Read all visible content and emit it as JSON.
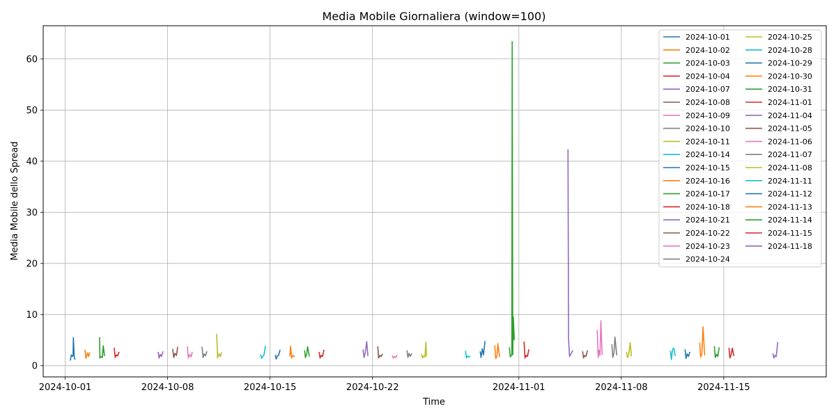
{
  "chart_data": {
    "type": "line",
    "title": "Media Mobile Giornaliera (window=100)",
    "xlabel": "Time",
    "ylabel": "Media Mobile dello Spread",
    "xlim": [
      "2024-09-29T12:00",
      "2024-11-22T00:00"
    ],
    "ylim": [
      -2.2,
      66.5
    ],
    "x_ticks": [
      "2024-10-01",
      "2024-10-08",
      "2024-10-15",
      "2024-10-22",
      "2024-11-01",
      "2024-11-08",
      "2024-11-15"
    ],
    "y_ticks": [
      0,
      10,
      20,
      30,
      40,
      50,
      60
    ],
    "grid": true,
    "legend_position": "top-right",
    "legend_columns": 2,
    "colors": [
      "#1f77b4",
      "#ff7f0e",
      "#2ca02c",
      "#d62728",
      "#9467bd",
      "#8c564b",
      "#e377c2",
      "#7f7f7f",
      "#bcbd22",
      "#17becf"
    ],
    "series": [
      {
        "name": "2024-10-01",
        "date": "2024-10-01",
        "x": [
          "2024-10-01T08:30",
          "2024-10-01T10:00",
          "2024-10-01T12:00",
          "2024-10-01T13:00",
          "2024-10-01T13:30",
          "2024-10-01T15:00",
          "2024-10-01T16:30"
        ],
        "values": [
          1.0,
          2.1,
          1.8,
          2.0,
          5.5,
          1.6,
          1.2
        ]
      },
      {
        "name": "2024-10-02",
        "date": "2024-10-02",
        "x": [
          "2024-10-02T08:30",
          "2024-10-02T10:00",
          "2024-10-02T11:30",
          "2024-10-02T13:00",
          "2024-10-02T14:30",
          "2024-10-02T16:30"
        ],
        "values": [
          3.1,
          1.4,
          2.0,
          2.5,
          1.8,
          2.6
        ]
      },
      {
        "name": "2024-10-03",
        "date": "2024-10-03",
        "x": [
          "2024-10-03T08:30",
          "2024-10-03T09:00",
          "2024-10-03T11:00",
          "2024-10-03T13:00",
          "2024-10-03T14:30",
          "2024-10-03T16:30"
        ],
        "values": [
          5.6,
          1.5,
          1.8,
          1.6,
          3.9,
          1.9
        ]
      },
      {
        "name": "2024-10-04",
        "date": "2024-10-04",
        "x": [
          "2024-10-04T08:30",
          "2024-10-04T10:00",
          "2024-10-04T12:00",
          "2024-10-04T14:00",
          "2024-10-04T16:30"
        ],
        "values": [
          3.5,
          1.6,
          2.1,
          1.9,
          2.7
        ]
      },
      {
        "name": "2024-10-07",
        "date": "2024-10-07",
        "x": [
          "2024-10-07T08:30",
          "2024-10-07T10:00",
          "2024-10-07T12:00",
          "2024-10-07T14:00",
          "2024-10-07T16:30"
        ],
        "values": [
          2.7,
          1.5,
          2.2,
          1.8,
          2.8
        ]
      },
      {
        "name": "2024-10-08",
        "date": "2024-10-08",
        "x": [
          "2024-10-08T08:30",
          "2024-10-08T10:00",
          "2024-10-08T12:00",
          "2024-10-08T14:30",
          "2024-10-08T16:30"
        ],
        "values": [
          3.3,
          1.6,
          2.4,
          2.0,
          3.7
        ]
      },
      {
        "name": "2024-10-09",
        "date": "2024-10-09",
        "x": [
          "2024-10-09T08:30",
          "2024-10-09T10:00",
          "2024-10-09T12:00",
          "2024-10-09T14:30",
          "2024-10-09T16:30"
        ],
        "values": [
          3.8,
          1.5,
          2.2,
          1.7,
          2.7
        ]
      },
      {
        "name": "2024-10-10",
        "date": "2024-10-10",
        "x": [
          "2024-10-10T08:30",
          "2024-10-10T10:00",
          "2024-10-10T12:00",
          "2024-10-10T14:00",
          "2024-10-10T16:30"
        ],
        "values": [
          3.7,
          1.6,
          2.3,
          1.9,
          2.8
        ]
      },
      {
        "name": "2024-10-11",
        "date": "2024-10-11",
        "x": [
          "2024-10-11T08:30",
          "2024-10-11T10:00",
          "2024-10-11T12:00",
          "2024-10-11T14:30",
          "2024-10-11T16:30"
        ],
        "values": [
          6.2,
          1.5,
          2.3,
          1.8,
          2.6
        ]
      },
      {
        "name": "2024-10-14",
        "date": "2024-10-14",
        "x": [
          "2024-10-14T08:30",
          "2024-10-14T10:00",
          "2024-10-14T12:00",
          "2024-10-14T14:00",
          "2024-10-14T16:30"
        ],
        "values": [
          2.2,
          1.4,
          1.8,
          2.1,
          3.9
        ]
      },
      {
        "name": "2024-10-15",
        "date": "2024-10-15",
        "x": [
          "2024-10-15T08:30",
          "2024-10-15T10:00",
          "2024-10-15T12:00",
          "2024-10-15T14:00",
          "2024-10-15T16:30"
        ],
        "values": [
          2.1,
          1.3,
          1.9,
          2.0,
          3.1
        ]
      },
      {
        "name": "2024-10-16",
        "date": "2024-10-16",
        "x": [
          "2024-10-16T08:30",
          "2024-10-16T09:30",
          "2024-10-16T11:30",
          "2024-10-16T13:30",
          "2024-10-16T16:30"
        ],
        "values": [
          1.8,
          3.8,
          1.5,
          2.0,
          1.7
        ]
      },
      {
        "name": "2024-10-17",
        "date": "2024-10-17",
        "x": [
          "2024-10-17T08:30",
          "2024-10-17T10:00",
          "2024-10-17T12:00",
          "2024-10-17T13:30",
          "2024-10-17T16:30"
        ],
        "values": [
          3.0,
          1.6,
          2.2,
          3.7,
          1.8
        ]
      },
      {
        "name": "2024-10-18",
        "date": "2024-10-18",
        "x": [
          "2024-10-18T08:30",
          "2024-10-18T10:00",
          "2024-10-18T12:00",
          "2024-10-18T14:00",
          "2024-10-18T16:30"
        ],
        "values": [
          2.7,
          1.5,
          2.0,
          1.8,
          3.1
        ]
      },
      {
        "name": "2024-10-21",
        "date": "2024-10-21",
        "x": [
          "2024-10-21T08:30",
          "2024-10-21T10:00",
          "2024-10-21T12:00",
          "2024-10-21T14:30",
          "2024-10-21T16:30"
        ],
        "values": [
          3.2,
          1.6,
          2.4,
          4.7,
          1.9
        ]
      },
      {
        "name": "2024-10-22",
        "date": "2024-10-22",
        "x": [
          "2024-10-22T08:30",
          "2024-10-22T10:00",
          "2024-10-22T12:00",
          "2024-10-22T14:00",
          "2024-10-22T16:30"
        ],
        "values": [
          3.8,
          1.5,
          2.0,
          1.8,
          2.3
        ]
      },
      {
        "name": "2024-10-23",
        "date": "2024-10-23",
        "x": [
          "2024-10-23T08:30",
          "2024-10-23T10:00",
          "2024-10-23T12:00",
          "2024-10-23T14:00",
          "2024-10-23T16:30"
        ],
        "values": [
          2.0,
          1.5,
          1.8,
          1.6,
          2.1
        ]
      },
      {
        "name": "2024-10-24",
        "date": "2024-10-24",
        "x": [
          "2024-10-24T08:30",
          "2024-10-24T10:00",
          "2024-10-24T12:00",
          "2024-10-24T14:00",
          "2024-10-24T16:30"
        ],
        "values": [
          3.0,
          1.6,
          2.4,
          1.8,
          2.4
        ]
      },
      {
        "name": "2024-10-25",
        "date": "2024-10-25",
        "x": [
          "2024-10-25T08:30",
          "2024-10-25T10:00",
          "2024-10-25T12:00",
          "2024-10-25T14:00",
          "2024-10-25T15:30",
          "2024-10-25T16:30"
        ],
        "values": [
          2.3,
          1.5,
          1.9,
          1.7,
          4.6,
          1.8
        ]
      },
      {
        "name": "2024-10-28",
        "date": "2024-10-28",
        "x": [
          "2024-10-28T08:30",
          "2024-10-28T10:00",
          "2024-10-28T12:00",
          "2024-10-28T14:00",
          "2024-10-28T16:30"
        ],
        "values": [
          2.9,
          1.5,
          1.9,
          1.7,
          1.8
        ]
      },
      {
        "name": "2024-10-29",
        "date": "2024-10-29",
        "x": [
          "2024-10-29T08:30",
          "2024-10-29T10:00",
          "2024-10-29T12:00",
          "2024-10-29T14:00",
          "2024-10-29T16:30"
        ],
        "values": [
          2.8,
          1.6,
          3.3,
          2.1,
          4.8
        ]
      },
      {
        "name": "2024-10-30",
        "date": "2024-10-30",
        "x": [
          "2024-10-30T08:30",
          "2024-10-30T10:00",
          "2024-10-30T12:00",
          "2024-10-30T13:30",
          "2024-10-30T16:30"
        ],
        "values": [
          4.0,
          1.4,
          1.8,
          4.3,
          1.7
        ]
      },
      {
        "name": "2024-10-31",
        "date": "2024-10-31",
        "x": [
          "2024-10-31T08:30",
          "2024-10-31T10:00",
          "2024-10-31T11:30",
          "2024-10-31T12:30",
          "2024-10-31T13:00",
          "2024-10-31T14:00",
          "2024-10-31T15:00",
          "2024-10-31T16:30"
        ],
        "values": [
          3.6,
          1.7,
          2.0,
          2.3,
          63.4,
          2.1,
          9.5,
          5.0
        ]
      },
      {
        "name": "2024-11-01",
        "date": "2024-11-01",
        "x": [
          "2024-11-01T08:30",
          "2024-11-01T10:00",
          "2024-11-01T12:00",
          "2024-11-01T14:00",
          "2024-11-01T16:30"
        ],
        "values": [
          4.7,
          1.5,
          2.0,
          1.8,
          3.2
        ]
      },
      {
        "name": "2024-11-04",
        "date": "2024-11-04",
        "x": [
          "2024-11-04T08:30",
          "2024-11-04T09:30",
          "2024-11-04T11:00",
          "2024-11-04T13:00",
          "2024-11-04T16:30"
        ],
        "values": [
          42.3,
          5.3,
          1.8,
          2.2,
          3.0
        ]
      },
      {
        "name": "2024-11-05",
        "date": "2024-11-05",
        "x": [
          "2024-11-05T08:30",
          "2024-11-05T10:00",
          "2024-11-05T12:00",
          "2024-11-05T14:00",
          "2024-11-05T16:30"
        ],
        "values": [
          2.8,
          1.5,
          2.0,
          1.8,
          3.0
        ]
      },
      {
        "name": "2024-11-06",
        "date": "2024-11-06",
        "x": [
          "2024-11-06T08:30",
          "2024-11-06T10:00",
          "2024-11-06T11:30",
          "2024-11-06T13:00",
          "2024-11-06T14:30",
          "2024-11-06T16:30"
        ],
        "values": [
          7.0,
          1.6,
          3.0,
          2.0,
          8.8,
          2.1
        ]
      },
      {
        "name": "2024-11-07",
        "date": "2024-11-07",
        "x": [
          "2024-11-07T08:30",
          "2024-11-07T10:00",
          "2024-11-07T12:00",
          "2024-11-07T13:30",
          "2024-11-07T16:30"
        ],
        "values": [
          4.2,
          1.6,
          2.5,
          5.6,
          2.0
        ]
      },
      {
        "name": "2024-11-08",
        "date": "2024-11-08",
        "x": [
          "2024-11-08T08:30",
          "2024-11-08T10:00",
          "2024-11-08T12:00",
          "2024-11-08T14:30",
          "2024-11-08T16:30"
        ],
        "values": [
          2.7,
          1.6,
          2.0,
          4.5,
          1.8
        ]
      },
      {
        "name": "2024-11-11",
        "date": "2024-11-11",
        "x": [
          "2024-11-11T08:30",
          "2024-11-11T10:00",
          "2024-11-11T12:00",
          "2024-11-11T14:00",
          "2024-11-11T16:30"
        ],
        "values": [
          2.9,
          1.2,
          3.2,
          3.4,
          1.9
        ]
      },
      {
        "name": "2024-11-12",
        "date": "2024-11-12",
        "x": [
          "2024-11-12T08:30",
          "2024-11-12T10:00",
          "2024-11-12T12:00",
          "2024-11-12T14:00",
          "2024-11-12T16:30"
        ],
        "values": [
          3.2,
          1.4,
          2.3,
          1.8,
          2.7
        ]
      },
      {
        "name": "2024-11-13",
        "date": "2024-11-13",
        "x": [
          "2024-11-13T08:30",
          "2024-11-13T10:00",
          "2024-11-13T12:00",
          "2024-11-13T14:00",
          "2024-11-13T16:30"
        ],
        "values": [
          4.5,
          1.7,
          2.2,
          7.6,
          2.0
        ]
      },
      {
        "name": "2024-11-14",
        "date": "2024-11-14",
        "x": [
          "2024-11-14T08:30",
          "2024-11-14T10:00",
          "2024-11-14T12:00",
          "2024-11-14T14:00",
          "2024-11-14T16:30"
        ],
        "values": [
          3.8,
          1.6,
          2.2,
          1.8,
          3.6
        ]
      },
      {
        "name": "2024-11-15",
        "date": "2024-11-15",
        "x": [
          "2024-11-15T08:30",
          "2024-11-15T10:00",
          "2024-11-15T12:00",
          "2024-11-15T14:00",
          "2024-11-15T16:30"
        ],
        "values": [
          3.5,
          1.5,
          2.1,
          3.4,
          1.9
        ]
      },
      {
        "name": "2024-11-18",
        "date": "2024-11-18",
        "x": [
          "2024-11-18T08:30",
          "2024-11-18T10:00",
          "2024-11-18T12:00",
          "2024-11-18T14:00",
          "2024-11-18T16:30"
        ],
        "values": [
          2.4,
          1.5,
          2.0,
          1.8,
          4.6
        ]
      }
    ]
  }
}
